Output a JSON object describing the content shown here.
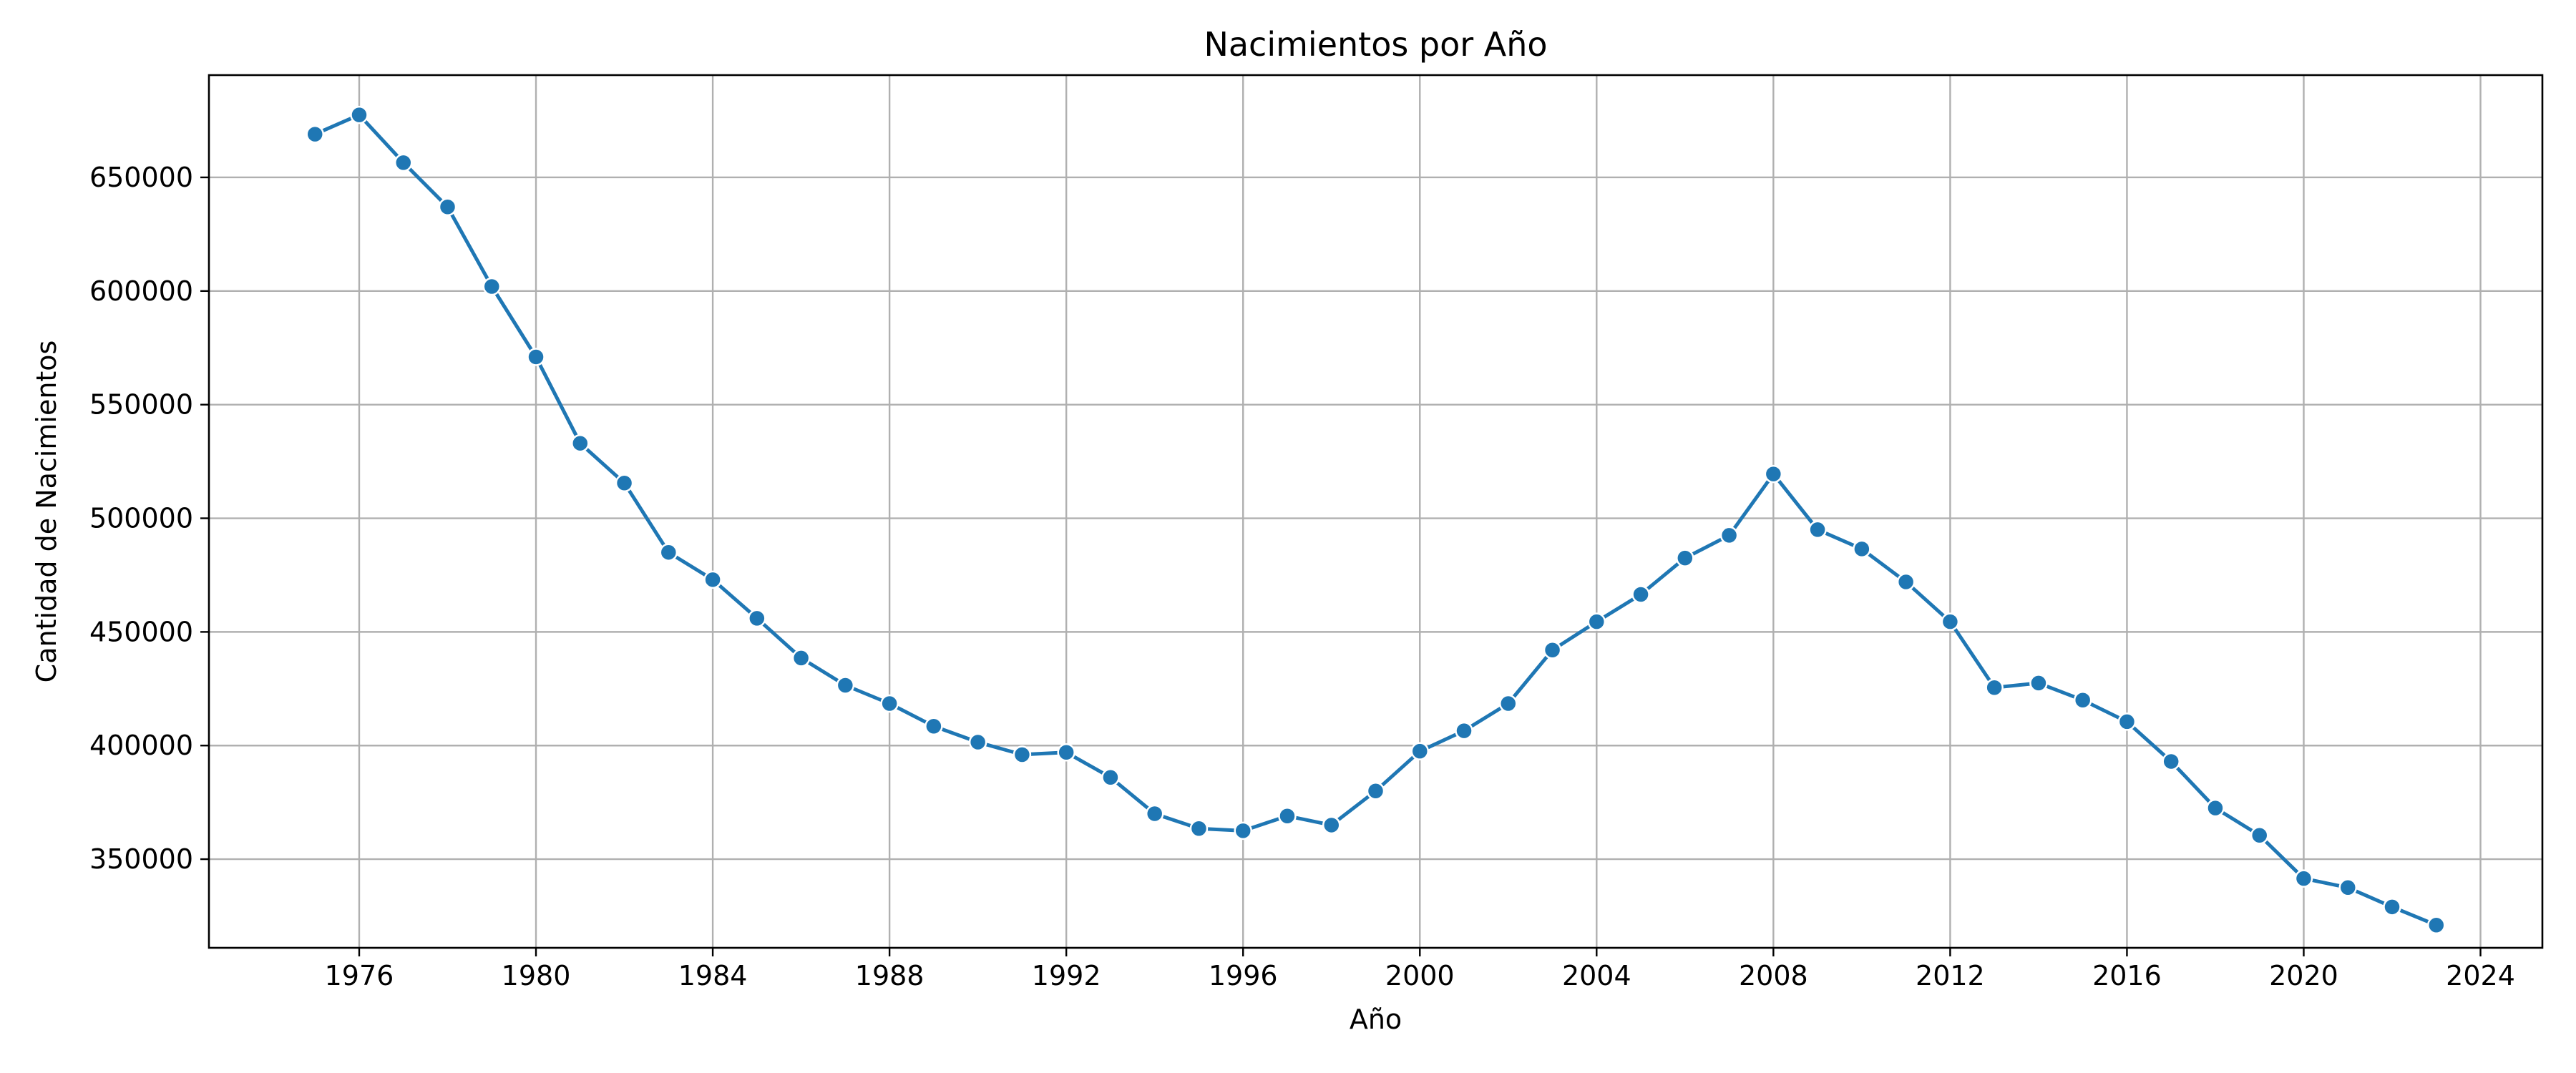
{
  "chart_data": {
    "type": "line",
    "title": "Nacimientos por Año",
    "xlabel": "Año",
    "ylabel": "Cantidad de Nacimientos",
    "xlim": [
      1972.6,
      2025.4
    ],
    "ylim": [
      311000,
      695000
    ],
    "xticks": [
      1976,
      1980,
      1984,
      1988,
      1992,
      1996,
      2000,
      2004,
      2008,
      2012,
      2016,
      2020,
      2024
    ],
    "yticks": [
      350000,
      400000,
      450000,
      500000,
      550000,
      600000,
      650000
    ],
    "grid": true,
    "color": "#1f77b4",
    "series": [
      {
        "x": [
          1975,
          1976,
          1977,
          1978,
          1979,
          1980,
          1981,
          1982,
          1983,
          1984,
          1985,
          1986,
          1987,
          1988,
          1989,
          1990,
          1991,
          1992,
          1993,
          1994,
          1995,
          1996,
          1997,
          1998,
          1999,
          2000,
          2001,
          2002,
          2003,
          2004,
          2005,
          2006,
          2007,
          2008,
          2009,
          2010,
          2011,
          2012,
          2013,
          2014,
          2015,
          2016,
          2017,
          2018,
          2019,
          2020,
          2021,
          2022,
          2023
        ],
        "values": [
          669000,
          677500,
          656500,
          637000,
          602000,
          571000,
          533000,
          515500,
          485000,
          473000,
          456000,
          438500,
          426500,
          418500,
          408500,
          401500,
          396000,
          397000,
          386000,
          370000,
          363500,
          362500,
          369000,
          365000,
          380000,
          397500,
          406500,
          418500,
          442000,
          454500,
          466500,
          482500,
          492500,
          519500,
          495000,
          486500,
          472000,
          454500,
          425500,
          427500,
          420000,
          410500,
          393000,
          372500,
          360500,
          341500,
          337500,
          329000,
          321000
        ]
      }
    ]
  }
}
